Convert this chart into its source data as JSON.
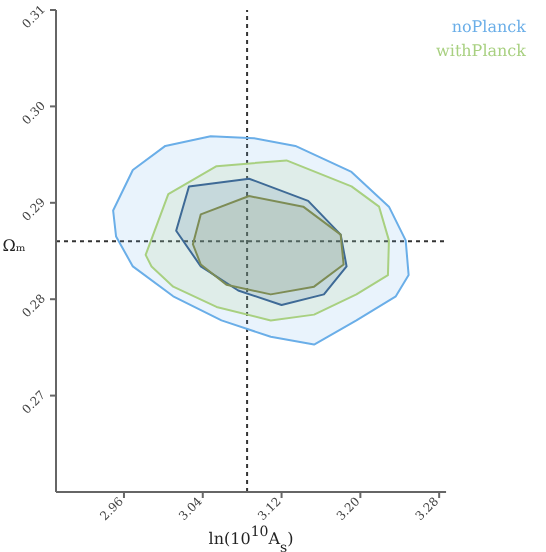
{
  "chart_data": {
    "type": "area",
    "xlabel": "ln(10$^{10}$A$_{s}$)",
    "ylabel": "Ωₘ",
    "xlim": [
      2.891,
      3.287
    ],
    "xticks": [
      2.96,
      3.04,
      3.12,
      {
        "value": 3.2,
        "label": "3.20"
      },
      3.28
    ],
    "ylim": [
      0.26,
      0.31
    ],
    "yticks": [
      0.27,
      0.28,
      0.29,
      {
        "value": 0.3,
        "label": "0.30"
      },
      0.31
    ],
    "grid": false,
    "legend": "top right",
    "marker": "none",
    "line_style": "solid",
    "ref_lines": [
      {
        "axis": "x",
        "value": 3.085,
        "line_style": "dotted",
        "color": "#333333"
      },
      {
        "axis": "y",
        "value": 0.286,
        "line_style": "dotted",
        "color": "#333333"
      }
    ],
    "series": [
      {
        "name": "noPlanck",
        "color": "#6aaee8",
        "x": [
          2.949,
          2.969,
          3.002,
          3.048,
          3.092,
          3.134,
          3.191,
          3.229,
          3.246,
          3.249,
          3.236,
          3.196,
          3.153,
          3.109,
          3.059,
          3.01,
          2.969,
          2.952
        ],
        "values": [
          0.2892,
          0.2934,
          0.2959,
          0.2969,
          0.2967,
          0.2959,
          0.2932,
          0.2896,
          0.2861,
          0.2825,
          0.2803,
          0.2778,
          0.2753,
          0.2761,
          0.2778,
          0.2803,
          0.2834,
          0.2865
        ]
      },
      {
        "name": "withPlanck",
        "color": "#a8d080",
        "x": [
          2.982,
          3.005,
          3.054,
          3.125,
          3.191,
          3.219,
          3.229,
          3.228,
          3.196,
          3.153,
          3.109,
          3.054,
          3.01,
          2.988
        ],
        "values": [
          0.2846,
          0.2909,
          0.2938,
          0.2944,
          0.2917,
          0.2896,
          0.2861,
          0.2825,
          0.2805,
          0.2784,
          0.2778,
          0.2792,
          0.2813,
          0.2834
        ]
      },
      {
        "color": "#3e6a96",
        "x": [
          3.013,
          3.026,
          3.087,
          3.147,
          3.18,
          3.186,
          3.163,
          3.12,
          3.076,
          3.038
        ],
        "values": [
          0.2871,
          0.2917,
          0.2925,
          0.2902,
          0.2867,
          0.2834,
          0.2805,
          0.2794,
          0.2809,
          0.2834
        ]
      },
      {
        "color": "#7d8c55",
        "x": [
          3.03,
          3.038,
          3.087,
          3.142,
          3.18,
          3.183,
          3.153,
          3.109,
          3.064,
          3.038
        ],
        "values": [
          0.2857,
          0.2888,
          0.2907,
          0.2896,
          0.2867,
          0.2836,
          0.2813,
          0.2805,
          0.2815,
          0.2836
        ]
      }
    ]
  }
}
